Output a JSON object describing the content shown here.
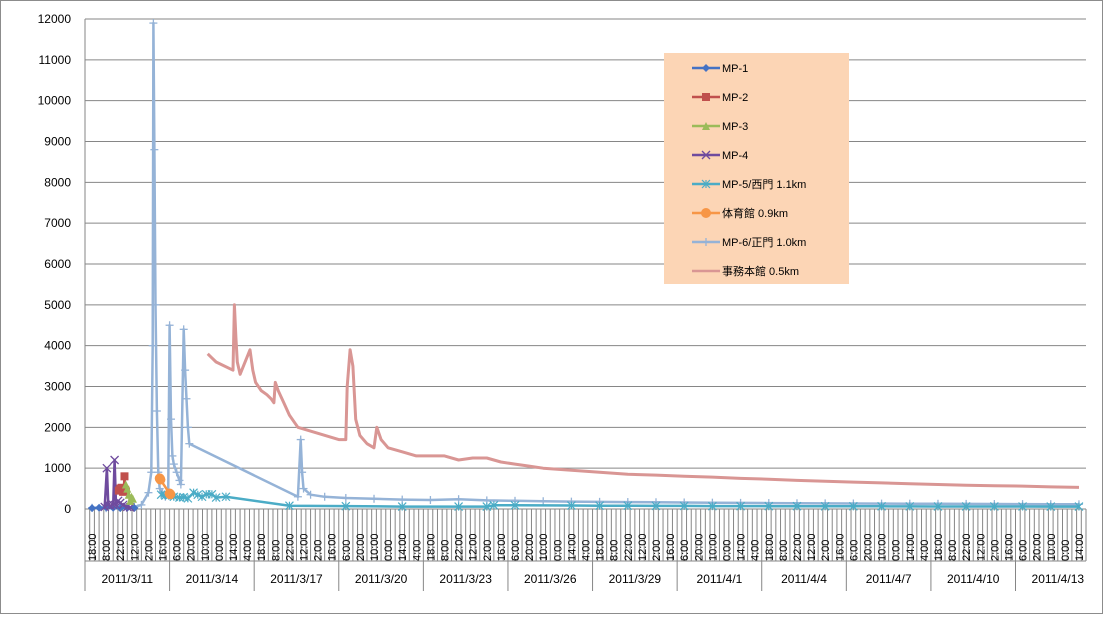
{
  "chart_data": {
    "type": "line",
    "title": "",
    "xlabel": "",
    "ylabel": "",
    "ylim": [
      0,
      12000
    ],
    "yticks": [
      0,
      1000,
      2000,
      3000,
      4000,
      5000,
      6000,
      7000,
      8000,
      9000,
      10000,
      11000,
      12000
    ],
    "grid": "horizontal",
    "legend_position": "top-right",
    "x_time_labels": [
      "18:00",
      "8:00",
      "22:00",
      "12:00",
      "2:00",
      "16:00",
      "6:00",
      "20:00",
      "10:00",
      "0:00",
      "14:00",
      "4:00",
      "18:00",
      "8:00",
      "22:00",
      "12:00",
      "2:00",
      "16:00",
      "6:00",
      "20:00",
      "10:00",
      "0:00",
      "14:00",
      "4:00",
      "18:00",
      "8:00",
      "22:00",
      "12:00",
      "2:00",
      "16:00",
      "6:00",
      "20:00",
      "10:00",
      "0:00",
      "14:00",
      "4:00",
      "18:00",
      "8:00",
      "22:00",
      "12:00",
      "2:00",
      "16:00",
      "6:00",
      "20:00",
      "10:00",
      "0:00",
      "14:00",
      "4:00",
      "18:00",
      "8:00",
      "22:00",
      "12:00",
      "2:00",
      "16:00",
      "6:00",
      "20:00",
      "10:00",
      "0:00",
      "14:00",
      "4:00",
      "18:00",
      "8:00",
      "22:00",
      "12:00",
      "2:00",
      "16:00",
      "6:00",
      "20:00",
      "10:00",
      "0:00",
      "14:00"
    ],
    "x_date_labels": [
      "2011/3/11",
      "2011/3/14",
      "2011/3/17",
      "2011/3/20",
      "2011/3/23",
      "2011/3/26",
      "2011/3/29",
      "2011/4/1",
      "2011/4/4",
      "2011/4/7",
      "2011/4/10",
      "2011/4/13"
    ],
    "series": [
      {
        "name": "MP-1",
        "color": "#4472c4",
        "marker": "diamond",
        "points": [
          [
            0,
            20
          ],
          [
            0.5,
            30
          ],
          [
            1.0,
            40
          ],
          [
            1.5,
            30
          ],
          [
            2.0,
            20
          ],
          [
            2.5,
            30
          ],
          [
            3.0,
            25
          ]
        ]
      },
      {
        "name": "MP-2",
        "color": "#c0504d",
        "marker": "square",
        "points": [
          [
            1.9,
            450
          ],
          [
            2.0,
            500
          ],
          [
            2.1,
            520
          ],
          [
            2.2,
            420
          ],
          [
            2.25,
            480
          ],
          [
            2.3,
            800
          ],
          [
            2.35,
            470
          ],
          [
            2.4,
            430
          ]
        ]
      },
      {
        "name": "MP-3",
        "color": "#9bbb59",
        "marker": "triangle",
        "points": [
          [
            2.4,
            600
          ],
          [
            2.5,
            500
          ],
          [
            2.6,
            350
          ],
          [
            2.7,
            200
          ],
          [
            2.8,
            300
          ],
          [
            2.9,
            250
          ]
        ]
      },
      {
        "name": "MP-4",
        "color": "#6f4b9e",
        "marker": "x",
        "points": [
          [
            0.9,
            50
          ],
          [
            1.05,
            1000
          ],
          [
            1.15,
            100
          ],
          [
            1.3,
            80
          ],
          [
            1.5,
            100
          ],
          [
            1.6,
            1200
          ],
          [
            1.7,
            100
          ],
          [
            1.85,
            200
          ],
          [
            2.0,
            150
          ],
          [
            2.2,
            100
          ],
          [
            2.5,
            50
          ],
          [
            2.7,
            40
          ]
        ]
      },
      {
        "name": "MP-5/西門 1.1km",
        "color": "#4bacc6",
        "marker": "star",
        "points": [
          [
            4.9,
            350
          ],
          [
            5.2,
            330
          ],
          [
            5.5,
            340
          ],
          [
            5.8,
            300
          ],
          [
            6.2,
            280
          ],
          [
            6.5,
            290
          ],
          [
            6.8,
            260
          ],
          [
            7.2,
            400
          ],
          [
            7.5,
            350
          ],
          [
            7.8,
            300
          ],
          [
            8.1,
            360
          ],
          [
            8.5,
            360
          ],
          [
            8.8,
            280
          ],
          [
            9.5,
            300
          ],
          [
            14.0,
            80
          ],
          [
            18.0,
            70
          ],
          [
            22.0,
            60
          ],
          [
            26.0,
            60
          ],
          [
            28.0,
            60
          ],
          [
            28.5,
            90
          ],
          [
            30.0,
            90
          ],
          [
            34.0,
            85
          ],
          [
            36.0,
            80
          ],
          [
            38.0,
            80
          ],
          [
            40.0,
            75
          ],
          [
            42.0,
            75
          ],
          [
            44.0,
            70
          ],
          [
            46.0,
            70
          ],
          [
            48.0,
            68
          ],
          [
            50.0,
            68
          ],
          [
            52.0,
            66
          ],
          [
            54.0,
            65
          ],
          [
            56.0,
            65
          ],
          [
            58.0,
            64
          ],
          [
            60.0,
            62
          ],
          [
            62.0,
            62
          ],
          [
            64.0,
            62
          ],
          [
            66.0,
            61
          ],
          [
            68.0,
            60
          ],
          [
            70.0,
            60
          ]
        ]
      },
      {
        "name": "体育館 0.9km",
        "color": "#f79646",
        "marker": "circle",
        "points": [
          [
            4.8,
            750
          ],
          [
            4.85,
            720
          ],
          [
            5.5,
            380
          ],
          [
            5.55,
            360
          ]
        ]
      },
      {
        "name": "MP-6/正門 1.0km",
        "color": "#95b3d7",
        "marker": "plus",
        "points": [
          [
            0,
            30
          ],
          [
            1.0,
            20
          ],
          [
            2.0,
            40
          ],
          [
            3.0,
            50
          ],
          [
            3.5,
            100
          ],
          [
            4.0,
            400
          ],
          [
            4.2,
            900
          ],
          [
            4.3,
            4000
          ],
          [
            4.35,
            11900
          ],
          [
            4.42,
            8800
          ],
          [
            4.5,
            5000
          ],
          [
            4.6,
            2400
          ],
          [
            4.7,
            900
          ],
          [
            4.8,
            500
          ],
          [
            5.0,
            400
          ],
          [
            5.2,
            300
          ],
          [
            5.4,
            350
          ],
          [
            5.5,
            4500
          ],
          [
            5.6,
            2200
          ],
          [
            5.7,
            1300
          ],
          [
            5.8,
            1100
          ],
          [
            6.0,
            900
          ],
          [
            6.2,
            700
          ],
          [
            6.3,
            600
          ],
          [
            6.5,
            4400
          ],
          [
            6.6,
            3400
          ],
          [
            6.7,
            2700
          ],
          [
            6.8,
            2000
          ],
          [
            6.9,
            1600
          ],
          [
            14.6,
            300
          ],
          [
            14.8,
            1700
          ],
          [
            14.9,
            900
          ],
          [
            15.0,
            500
          ],
          [
            15.5,
            350
          ],
          [
            16.5,
            300
          ],
          [
            18.0,
            270
          ],
          [
            20.0,
            250
          ],
          [
            22.0,
            230
          ],
          [
            24.0,
            220
          ],
          [
            26.0,
            240
          ],
          [
            28.0,
            210
          ],
          [
            30.0,
            200
          ],
          [
            32.0,
            190
          ],
          [
            34.0,
            180
          ],
          [
            36.0,
            175
          ],
          [
            38.0,
            170
          ],
          [
            40.0,
            165
          ],
          [
            42.0,
            160
          ],
          [
            44.0,
            155
          ],
          [
            46.0,
            150
          ],
          [
            48.0,
            145
          ],
          [
            50.0,
            140
          ],
          [
            52.0,
            138
          ],
          [
            54.0,
            135
          ],
          [
            56.0,
            132
          ],
          [
            58.0,
            130
          ],
          [
            60.0,
            128
          ],
          [
            62.0,
            125
          ],
          [
            64.0,
            122
          ],
          [
            66.0,
            120
          ],
          [
            68.0,
            118
          ],
          [
            70.0,
            115
          ]
        ]
      },
      {
        "name": "事務本館 0.5km",
        "color": "#d99694",
        "marker": "none",
        "points": [
          [
            8.2,
            3800
          ],
          [
            8.5,
            3700
          ],
          [
            8.8,
            3600
          ],
          [
            10.0,
            3400
          ],
          [
            10.1,
            5000
          ],
          [
            10.2,
            4200
          ],
          [
            10.3,
            3600
          ],
          [
            10.5,
            3300
          ],
          [
            11.2,
            3900
          ],
          [
            11.4,
            3400
          ],
          [
            11.6,
            3100
          ],
          [
            12.0,
            2900
          ],
          [
            12.4,
            2800
          ],
          [
            12.7,
            2700
          ],
          [
            12.9,
            2600
          ],
          [
            13.0,
            3100
          ],
          [
            13.2,
            2900
          ],
          [
            13.6,
            2600
          ],
          [
            14.0,
            2300
          ],
          [
            14.4,
            2100
          ],
          [
            14.6,
            2000
          ],
          [
            17.5,
            1700
          ],
          [
            18.0,
            1700
          ],
          [
            18.1,
            3000
          ],
          [
            18.3,
            3900
          ],
          [
            18.5,
            3500
          ],
          [
            18.7,
            2200
          ],
          [
            19.0,
            1800
          ],
          [
            19.5,
            1600
          ],
          [
            20.0,
            1500
          ],
          [
            20.2,
            2000
          ],
          [
            20.5,
            1700
          ],
          [
            21.0,
            1500
          ],
          [
            22.0,
            1400
          ],
          [
            23.0,
            1300
          ],
          [
            24.0,
            1300
          ],
          [
            25.0,
            1300
          ],
          [
            26.0,
            1200
          ],
          [
            27.0,
            1250
          ],
          [
            28.0,
            1250
          ],
          [
            29.0,
            1150
          ],
          [
            30.0,
            1100
          ],
          [
            31.0,
            1050
          ],
          [
            32.0,
            1000
          ],
          [
            34.0,
            950
          ],
          [
            36.0,
            900
          ],
          [
            38.0,
            850
          ],
          [
            40.0,
            830
          ],
          [
            42.0,
            800
          ],
          [
            44.0,
            780
          ],
          [
            46.0,
            750
          ],
          [
            48.0,
            730
          ],
          [
            50.0,
            700
          ],
          [
            52.0,
            680
          ],
          [
            54.0,
            660
          ],
          [
            56.0,
            640
          ],
          [
            58.0,
            620
          ],
          [
            60.0,
            600
          ],
          [
            62.0,
            580
          ],
          [
            64.0,
            570
          ],
          [
            66.0,
            560
          ],
          [
            68.0,
            540
          ],
          [
            70.0,
            530
          ]
        ]
      }
    ]
  }
}
